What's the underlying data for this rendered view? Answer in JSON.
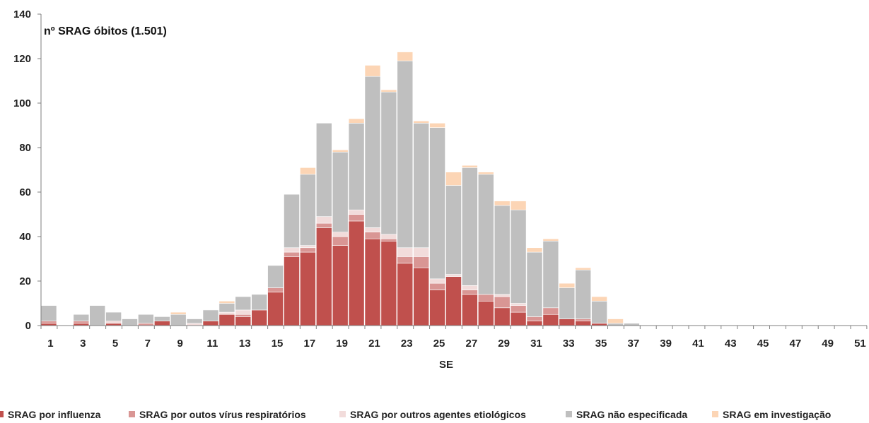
{
  "chart_data": {
    "type": "bar",
    "stacked": true,
    "title": "nº SRAG óbitos (1.501)",
    "xlabel": "SE",
    "ylabel": "",
    "ylim": [
      0,
      140
    ],
    "yticks": [
      0,
      20,
      40,
      60,
      80,
      100,
      120,
      140
    ],
    "x": [
      1,
      2,
      3,
      4,
      5,
      6,
      7,
      8,
      9,
      10,
      11,
      12,
      13,
      14,
      15,
      16,
      17,
      18,
      19,
      20,
      21,
      22,
      23,
      24,
      25,
      26,
      27,
      28,
      29,
      30,
      31,
      32,
      33,
      34,
      35,
      36,
      37,
      38,
      39,
      40,
      41,
      42,
      43,
      44,
      45,
      46,
      47,
      48,
      49,
      50,
      51,
      52
    ],
    "xtick_labels": [
      "1",
      "3",
      "5",
      "7",
      "9",
      "11",
      "13",
      "15",
      "17",
      "19",
      "21",
      "23",
      "25",
      "27",
      "29",
      "31",
      "33",
      "35",
      "37",
      "39",
      "41",
      "43",
      "45",
      "47",
      "49",
      "51"
    ],
    "grid": false,
    "legend_position": "bottom",
    "series": [
      {
        "name": "SRAG por influenza",
        "color": "#c0504d",
        "values": [
          1,
          0,
          1,
          0,
          1,
          0,
          0,
          2,
          0,
          0,
          2,
          5,
          4,
          7,
          15,
          31,
          33,
          44,
          36,
          47,
          39,
          38,
          28,
          26,
          16,
          22,
          14,
          11,
          8,
          6,
          2,
          5,
          3,
          2,
          1,
          0,
          0,
          0,
          0,
          0,
          0,
          0,
          0,
          0,
          0,
          0,
          0,
          0,
          0,
          0,
          0,
          0
        ]
      },
      {
        "name": "SRAG por outos vírus respiratórios",
        "color": "#d99694",
        "values": [
          1,
          0,
          1,
          0,
          0,
          0,
          1,
          0,
          0,
          0,
          0,
          0,
          1,
          0,
          2,
          2,
          2,
          2,
          4,
          3,
          3,
          1,
          3,
          5,
          3,
          0,
          2,
          3,
          5,
          3,
          2,
          3,
          0,
          1,
          0,
          0,
          0,
          0,
          0,
          0,
          0,
          0,
          0,
          0,
          0,
          0,
          0,
          0,
          0,
          0,
          0,
          0
        ]
      },
      {
        "name": "SRAG por outros agentes etiológicos",
        "color": "#f2dcdb",
        "values": [
          0,
          0,
          0,
          0,
          1,
          0,
          0,
          0,
          0,
          1,
          0,
          1,
          2,
          0,
          0,
          2,
          1,
          3,
          2,
          2,
          2,
          2,
          4,
          4,
          2,
          1,
          2,
          0,
          1,
          1,
          0,
          0,
          0,
          0,
          0,
          0,
          0,
          0,
          0,
          0,
          0,
          0,
          0,
          0,
          0,
          0,
          0,
          0,
          0,
          0,
          0,
          0
        ]
      },
      {
        "name": "SRAG não especificada",
        "color": "#bfbfbf",
        "values": [
          7,
          0,
          3,
          9,
          4,
          3,
          4,
          2,
          5,
          2,
          5,
          4,
          6,
          7,
          10,
          24,
          32,
          42,
          36,
          39,
          68,
          64,
          84,
          56,
          68,
          40,
          53,
          54,
          40,
          42,
          29,
          30,
          14,
          22,
          10,
          1,
          1,
          0,
          0,
          0,
          0,
          0,
          0,
          0,
          0,
          0,
          0,
          0,
          0,
          0,
          0,
          0
        ]
      },
      {
        "name": "SRAG em investigação",
        "color": "#fcd5b5",
        "values": [
          0,
          0,
          0,
          0,
          0,
          0,
          0,
          0,
          1,
          0,
          0,
          1,
          0,
          0,
          0,
          0,
          3,
          0,
          1,
          2,
          5,
          1,
          4,
          1,
          2,
          6,
          1,
          1,
          2,
          4,
          2,
          1,
          2,
          1,
          2,
          2,
          0,
          0,
          0,
          0,
          0,
          0,
          0,
          0,
          0,
          0,
          0,
          0,
          0,
          0,
          0,
          0
        ]
      }
    ]
  }
}
